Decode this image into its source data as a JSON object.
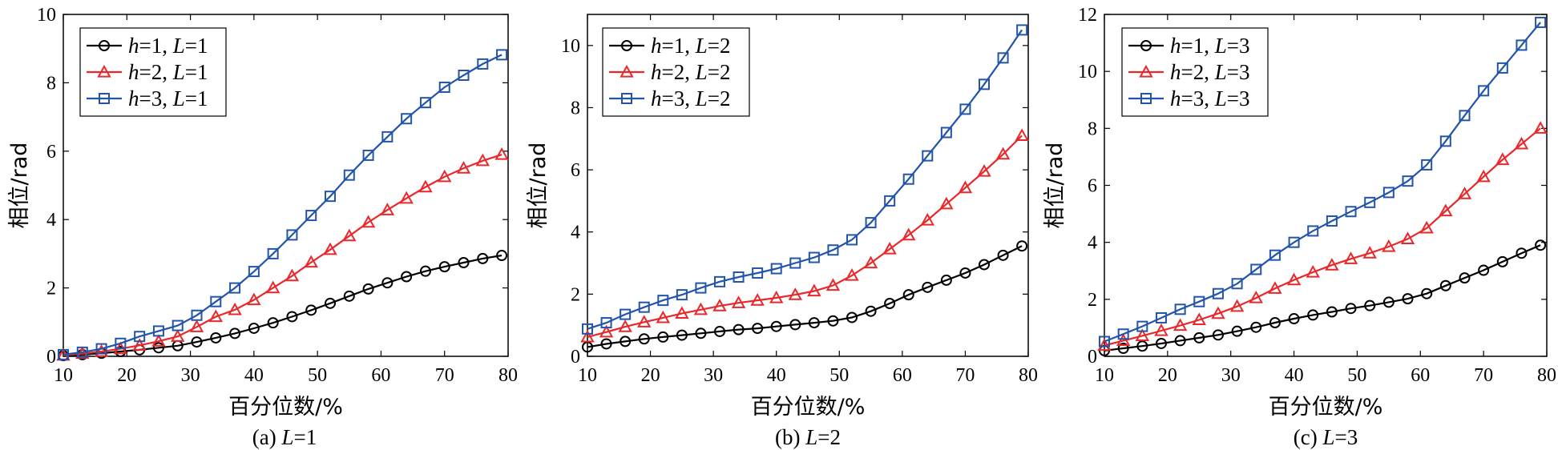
{
  "chart_data": [
    {
      "type": "line",
      "caption": "(a) L=1",
      "caption_prefix": "(a) ",
      "caption_var": "L",
      "caption_value": "=1",
      "xlabel": "百分位数/%",
      "ylabel": "相位/rad",
      "xlim": [
        10,
        80
      ],
      "ylim": [
        0,
        10
      ],
      "xticks": [
        10,
        20,
        30,
        40,
        50,
        60,
        70,
        80
      ],
      "yticks": [
        0,
        2,
        4,
        6,
        8,
        10
      ],
      "x": [
        10,
        13,
        16,
        19,
        22,
        25,
        28,
        31,
        34,
        37,
        40,
        43,
        46,
        49,
        52,
        55,
        58,
        61,
        64,
        67,
        70,
        73,
        76,
        79
      ],
      "series": [
        {
          "name": "h=1, L=1",
          "h": "1",
          "L": "1",
          "color": "#000000",
          "marker": "circle",
          "values": [
            0.02,
            0.05,
            0.09,
            0.14,
            0.19,
            0.25,
            0.31,
            0.42,
            0.54,
            0.67,
            0.82,
            0.98,
            1.16,
            1.35,
            1.55,
            1.76,
            1.97,
            2.15,
            2.33,
            2.49,
            2.62,
            2.74,
            2.86,
            2.95
          ]
        },
        {
          "name": "h=2, L=1",
          "h": "2",
          "L": "1",
          "color": "#e8282b",
          "marker": "triangle",
          "values": [
            0.03,
            0.08,
            0.14,
            0.22,
            0.32,
            0.44,
            0.58,
            0.86,
            1.16,
            1.36,
            1.65,
            2.0,
            2.35,
            2.75,
            3.12,
            3.52,
            3.92,
            4.28,
            4.62,
            4.95,
            5.25,
            5.5,
            5.72,
            5.9
          ]
        },
        {
          "name": "h=3, L=1",
          "h": "3",
          "L": "1",
          "color": "#2255aa",
          "marker": "square",
          "values": [
            0.05,
            0.12,
            0.22,
            0.38,
            0.58,
            0.74,
            0.9,
            1.2,
            1.6,
            2.0,
            2.48,
            3.0,
            3.55,
            4.12,
            4.68,
            5.3,
            5.88,
            6.42,
            6.95,
            7.42,
            7.87,
            8.22,
            8.55,
            8.82
          ]
        }
      ]
    },
    {
      "type": "line",
      "caption": "(b) L=2",
      "caption_prefix": "(b) ",
      "caption_var": "L",
      "caption_value": "=2",
      "xlabel": "百分位数/%",
      "ylabel": "相位/rad",
      "xlim": [
        10,
        80
      ],
      "ylim": [
        0,
        11
      ],
      "xticks": [
        10,
        20,
        30,
        40,
        50,
        60,
        70,
        80
      ],
      "yticks": [
        0,
        2,
        4,
        6,
        8,
        10
      ],
      "x": [
        10,
        13,
        16,
        19,
        22,
        25,
        28,
        31,
        34,
        37,
        40,
        43,
        46,
        49,
        52,
        55,
        58,
        61,
        64,
        67,
        70,
        73,
        76,
        79
      ],
      "series": [
        {
          "name": "h=1, L=2",
          "h": "1",
          "L": "2",
          "color": "#000000",
          "marker": "circle",
          "values": [
            0.3,
            0.4,
            0.48,
            0.56,
            0.62,
            0.68,
            0.74,
            0.8,
            0.86,
            0.9,
            0.96,
            1.02,
            1.08,
            1.14,
            1.25,
            1.45,
            1.7,
            1.98,
            2.22,
            2.45,
            2.68,
            2.95,
            3.25,
            3.55
          ]
        },
        {
          "name": "h=2, L=2",
          "h": "2",
          "L": "2",
          "color": "#e8282b",
          "marker": "triangle",
          "values": [
            0.62,
            0.78,
            0.95,
            1.1,
            1.24,
            1.38,
            1.5,
            1.62,
            1.72,
            1.8,
            1.88,
            1.98,
            2.1,
            2.28,
            2.6,
            3.0,
            3.45,
            3.9,
            4.38,
            4.9,
            5.42,
            5.95,
            6.5,
            7.1
          ]
        },
        {
          "name": "h=3, L=2",
          "h": "3",
          "L": "2",
          "color": "#2255aa",
          "marker": "square",
          "values": [
            0.88,
            1.08,
            1.35,
            1.58,
            1.8,
            1.98,
            2.2,
            2.4,
            2.55,
            2.68,
            2.82,
            3.0,
            3.18,
            3.42,
            3.75,
            4.3,
            5.0,
            5.7,
            6.45,
            7.2,
            7.95,
            8.75,
            9.6,
            10.5
          ]
        }
      ]
    },
    {
      "type": "line",
      "caption": "(c) L=3",
      "caption_prefix": "(c) ",
      "caption_var": "L",
      "caption_value": "=3",
      "xlabel": "百分位数/%",
      "ylabel": "相位/rad",
      "xlim": [
        10,
        80
      ],
      "ylim": [
        0,
        12
      ],
      "xticks": [
        10,
        20,
        30,
        40,
        50,
        60,
        70,
        80
      ],
      "yticks": [
        0,
        2,
        4,
        6,
        8,
        10,
        12
      ],
      "x": [
        10,
        13,
        16,
        19,
        22,
        25,
        28,
        31,
        34,
        37,
        40,
        43,
        46,
        49,
        52,
        55,
        58,
        61,
        64,
        67,
        70,
        73,
        76,
        79
      ],
      "series": [
        {
          "name": "h=1, L=3",
          "h": "1",
          "L": "3",
          "color": "#000000",
          "marker": "circle",
          "values": [
            0.2,
            0.28,
            0.36,
            0.45,
            0.55,
            0.65,
            0.75,
            0.88,
            1.02,
            1.18,
            1.32,
            1.45,
            1.56,
            1.68,
            1.78,
            1.9,
            2.02,
            2.2,
            2.48,
            2.75,
            3.02,
            3.32,
            3.62,
            3.9
          ]
        },
        {
          "name": "h=2, L=3",
          "h": "2",
          "L": "3",
          "color": "#e8282b",
          "marker": "triangle",
          "values": [
            0.38,
            0.55,
            0.72,
            0.9,
            1.08,
            1.28,
            1.5,
            1.75,
            2.05,
            2.38,
            2.68,
            2.95,
            3.2,
            3.42,
            3.62,
            3.85,
            4.12,
            4.5,
            5.1,
            5.7,
            6.3,
            6.9,
            7.45,
            8.0
          ]
        },
        {
          "name": "h=3, L=3",
          "h": "3",
          "L": "3",
          "color": "#2255aa",
          "marker": "square",
          "values": [
            0.52,
            0.78,
            1.05,
            1.35,
            1.65,
            1.92,
            2.2,
            2.55,
            3.05,
            3.55,
            4.0,
            4.4,
            4.75,
            5.08,
            5.4,
            5.75,
            6.15,
            6.72,
            7.55,
            8.45,
            9.32,
            10.12,
            10.92,
            11.72
          ]
        }
      ]
    }
  ]
}
